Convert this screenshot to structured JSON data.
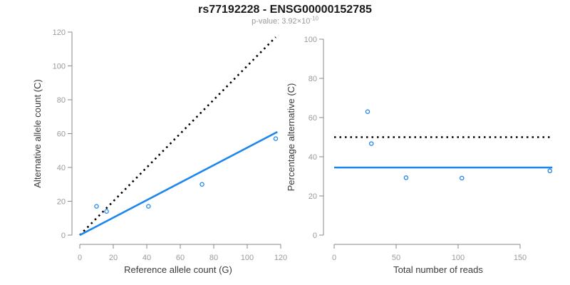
{
  "header": {
    "title": "rs77192228 - ENSG00000152785",
    "subtitle_base": "p-value: 3.92×10",
    "subtitle_exponent": "-10"
  },
  "colors": {
    "accent_blue": "#1C86EE",
    "dotted_black": "#000000",
    "axis_gray": "#8A8A8A",
    "tick_label_gray": "#9A9A9A",
    "axis_title_color": "#3B3B3B",
    "title_color": "#1A1A1A",
    "subtitle_color": "#9A9A9A",
    "background": "#FFFFFF"
  },
  "chart_data": [
    {
      "id": "allele-count-scatter",
      "type": "scatter",
      "xlabel": "Reference allele count (G)",
      "ylabel": "Alternative allele count (C)",
      "xlim": [
        0,
        120
      ],
      "ylim": [
        0,
        120
      ],
      "xticks": [
        0,
        20,
        40,
        60,
        80,
        100,
        120
      ],
      "yticks": [
        0,
        20,
        40,
        60,
        80,
        100,
        120
      ],
      "grid": false,
      "legend": "none",
      "point_color": "#1C86EE",
      "points": [
        [
          10,
          17
        ],
        [
          16,
          14
        ],
        [
          41,
          17
        ],
        [
          73,
          30
        ],
        [
          117,
          57
        ]
      ],
      "lines": [
        {
          "name": "identity-line",
          "style": "dotted",
          "color": "#000000",
          "x": [
            0,
            117
          ],
          "y": [
            0,
            117
          ]
        },
        {
          "name": "regression-line",
          "style": "solid",
          "color": "#1C86EE",
          "x": [
            0,
            118
          ],
          "y": [
            0,
            61
          ]
        }
      ]
    },
    {
      "id": "percentage-vs-reads-scatter",
      "type": "scatter",
      "xlabel": "Total number of reads",
      "ylabel": "Percentage alternative (C)",
      "xlim": [
        0,
        176
      ],
      "ylim": [
        0,
        100
      ],
      "xticks": [
        0,
        50,
        100,
        150
      ],
      "yticks": [
        0,
        20,
        40,
        60,
        80,
        100
      ],
      "grid": false,
      "legend": "none",
      "point_color": "#1C86EE",
      "points": [
        [
          27,
          63.0
        ],
        [
          30,
          46.7
        ],
        [
          58,
          29.3
        ],
        [
          103,
          29.1
        ],
        [
          174,
          32.8
        ]
      ],
      "lines": [
        {
          "name": "fifty-percent-line",
          "style": "dotted",
          "color": "#000000",
          "x": [
            0,
            176
          ],
          "y": [
            50,
            50
          ]
        },
        {
          "name": "mean-percentage-line",
          "style": "solid",
          "color": "#1C86EE",
          "x": [
            0,
            176
          ],
          "y": [
            34.5,
            34.5
          ]
        }
      ]
    }
  ]
}
